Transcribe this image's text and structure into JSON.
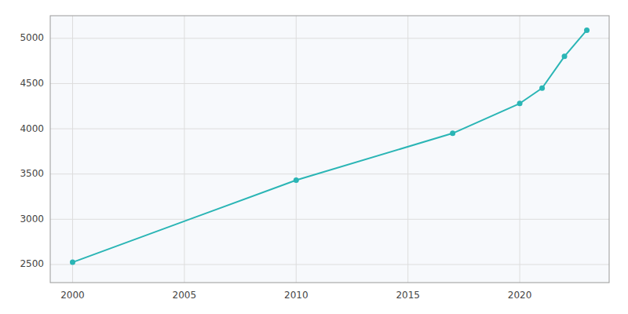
{
  "chart_data": {
    "type": "line",
    "x": [
      2000,
      2010,
      2017,
      2020,
      2021,
      2022,
      2023
    ],
    "values": [
      2525,
      3432,
      3950,
      4280,
      4450,
      4800,
      5090
    ],
    "color": "#2ab5b5",
    "marker": "circle",
    "xlim": [
      1999.0,
      2024.0
    ],
    "ylim": [
      2300,
      5250
    ],
    "xticks": [
      2000,
      2005,
      2010,
      2015,
      2020
    ],
    "yticks": [
      2500,
      3000,
      3500,
      4000,
      4500,
      5000
    ],
    "grid": true
  }
}
